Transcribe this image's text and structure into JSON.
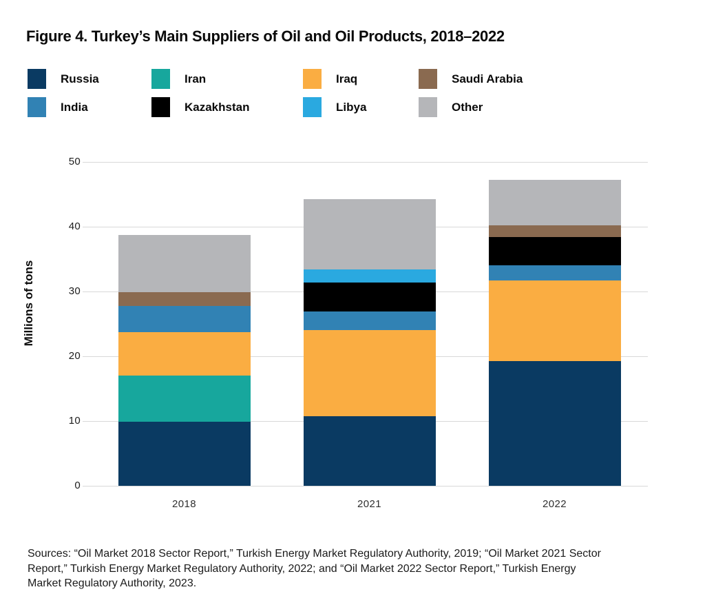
{
  "title": "Figure 4. Turkey’s Main Suppliers of Oil and Oil Products, 2018–2022",
  "source_note": "Sources: “Oil Market 2018 Sector Report,” Turkish Energy Market Regulatory Authority, 2019; “Oil Market 2021 Sector Report,” Turkish Energy Market Regulatory Authority, 2022; and “Oil Market 2022 Sector Report,” Turkish Energy Market Regulatory Authority, 2023.",
  "legend": {
    "rows": [
      [
        "Russia",
        "Iran",
        "Iraq",
        "Saudi Arabia"
      ],
      [
        "India",
        "Kazakhstan",
        "Libya",
        "Other"
      ]
    ]
  },
  "chart_data": {
    "type": "bar",
    "stacked": true,
    "title": "Figure 4. Turkey’s Main Suppliers of Oil and Oil Products, 2018–2022",
    "xlabel": "",
    "ylabel": "Millions of tons",
    "ylim": [
      0,
      50
    ],
    "yticks": [
      0,
      10,
      20,
      30,
      40,
      50
    ],
    "grid": "horizontal",
    "legend_position": "top",
    "categories": [
      "2018",
      "2021",
      "2022"
    ],
    "series": [
      {
        "name": "Russia",
        "color": "#0a3a62",
        "values": [
          9.9,
          10.8,
          19.3
        ]
      },
      {
        "name": "Iran",
        "color": "#17a79d",
        "values": [
          7.1,
          0,
          0
        ]
      },
      {
        "name": "Iraq",
        "color": "#faad42",
        "values": [
          6.7,
          13.3,
          12.4
        ]
      },
      {
        "name": "India",
        "color": "#3182b4",
        "values": [
          4.1,
          2.8,
          2.4
        ]
      },
      {
        "name": "Kazakhstan",
        "color": "#000000",
        "values": [
          0,
          4.5,
          4.3
        ]
      },
      {
        "name": "Libya",
        "color": "#2aa9e0",
        "values": [
          0,
          2.0,
          0
        ]
      },
      {
        "name": "Saudi Arabia",
        "color": "#8a6a50",
        "values": [
          2.1,
          0,
          1.8
        ]
      },
      {
        "name": "Other",
        "color": "#b5b6b9",
        "values": [
          8.8,
          10.9,
          7.0
        ]
      }
    ],
    "totals": [
      38.7,
      44.3,
      47.2
    ]
  }
}
